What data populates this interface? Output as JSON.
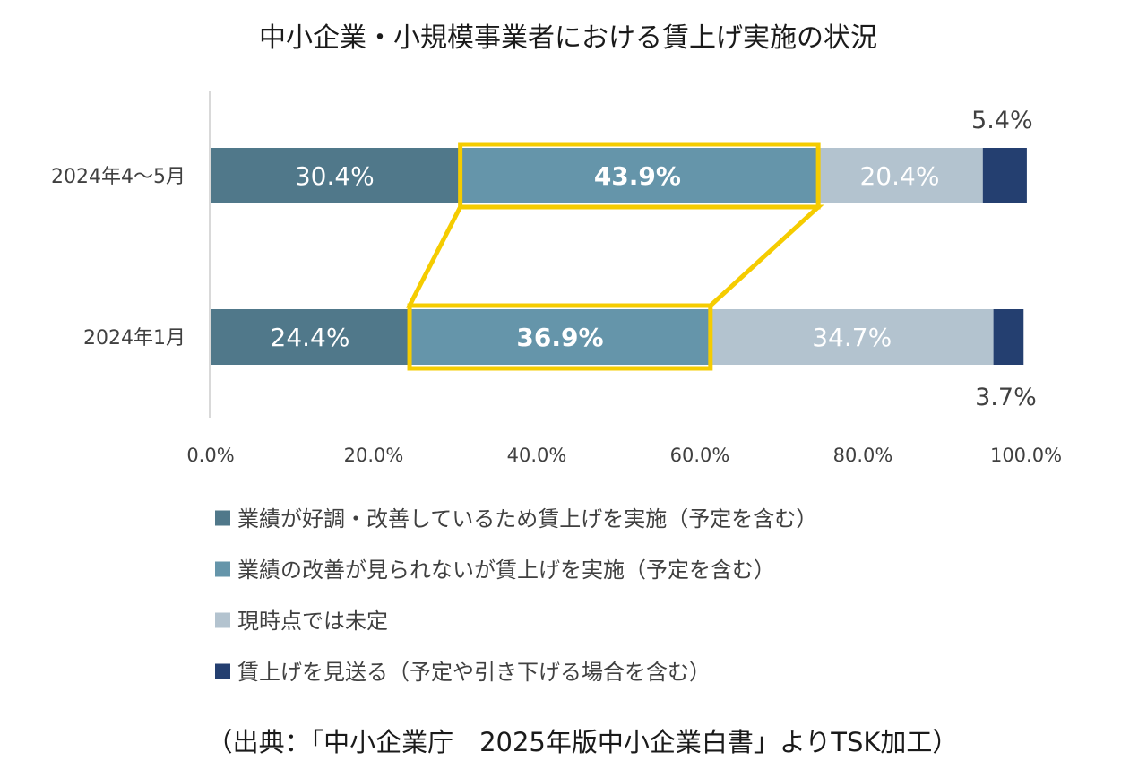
{
  "title": "中小企業・小規模事業者における賃上げ実施の状況",
  "source": "（出典：「中小企業庁　2025年版中小企業白書」よりTSK加工）",
  "chart_data": {
    "type": "bar",
    "orientation": "horizontal",
    "stacked": true,
    "categories": [
      "2024年4～5月",
      "2024年1月"
    ],
    "series": [
      {
        "name": "業績が好調・改善しているため賃上げを実施（予定を含む）",
        "color": "#50788a",
        "values": [
          30.4,
          24.4
        ],
        "labels": [
          "30.4%",
          "24.4%"
        ]
      },
      {
        "name": "業績の改善が見られないが賃上げを実施（予定を含む）",
        "color": "#6595aa",
        "values": [
          43.9,
          36.9
        ],
        "labels": [
          "43.9%",
          "36.9%"
        ],
        "highlighted": true,
        "highlight_color": "#f5cc00"
      },
      {
        "name": "現時点では未定",
        "color": "#b3c3cf",
        "values": [
          20.4,
          34.7
        ],
        "labels": [
          "20.4%",
          "34.7%"
        ]
      },
      {
        "name": "賃上げを見送る（予定や引き下げる場合を含む）",
        "color": "#243f70",
        "values": [
          5.4,
          3.7
        ],
        "labels": [
          "5.4%",
          "3.7%"
        ]
      }
    ],
    "xlim": [
      0,
      100
    ],
    "x_ticks": [
      "0.0%",
      "20.0%",
      "40.0%",
      "60.0%",
      "80.0%",
      "100.0%"
    ],
    "grid": false,
    "legend_position": "bottom"
  }
}
